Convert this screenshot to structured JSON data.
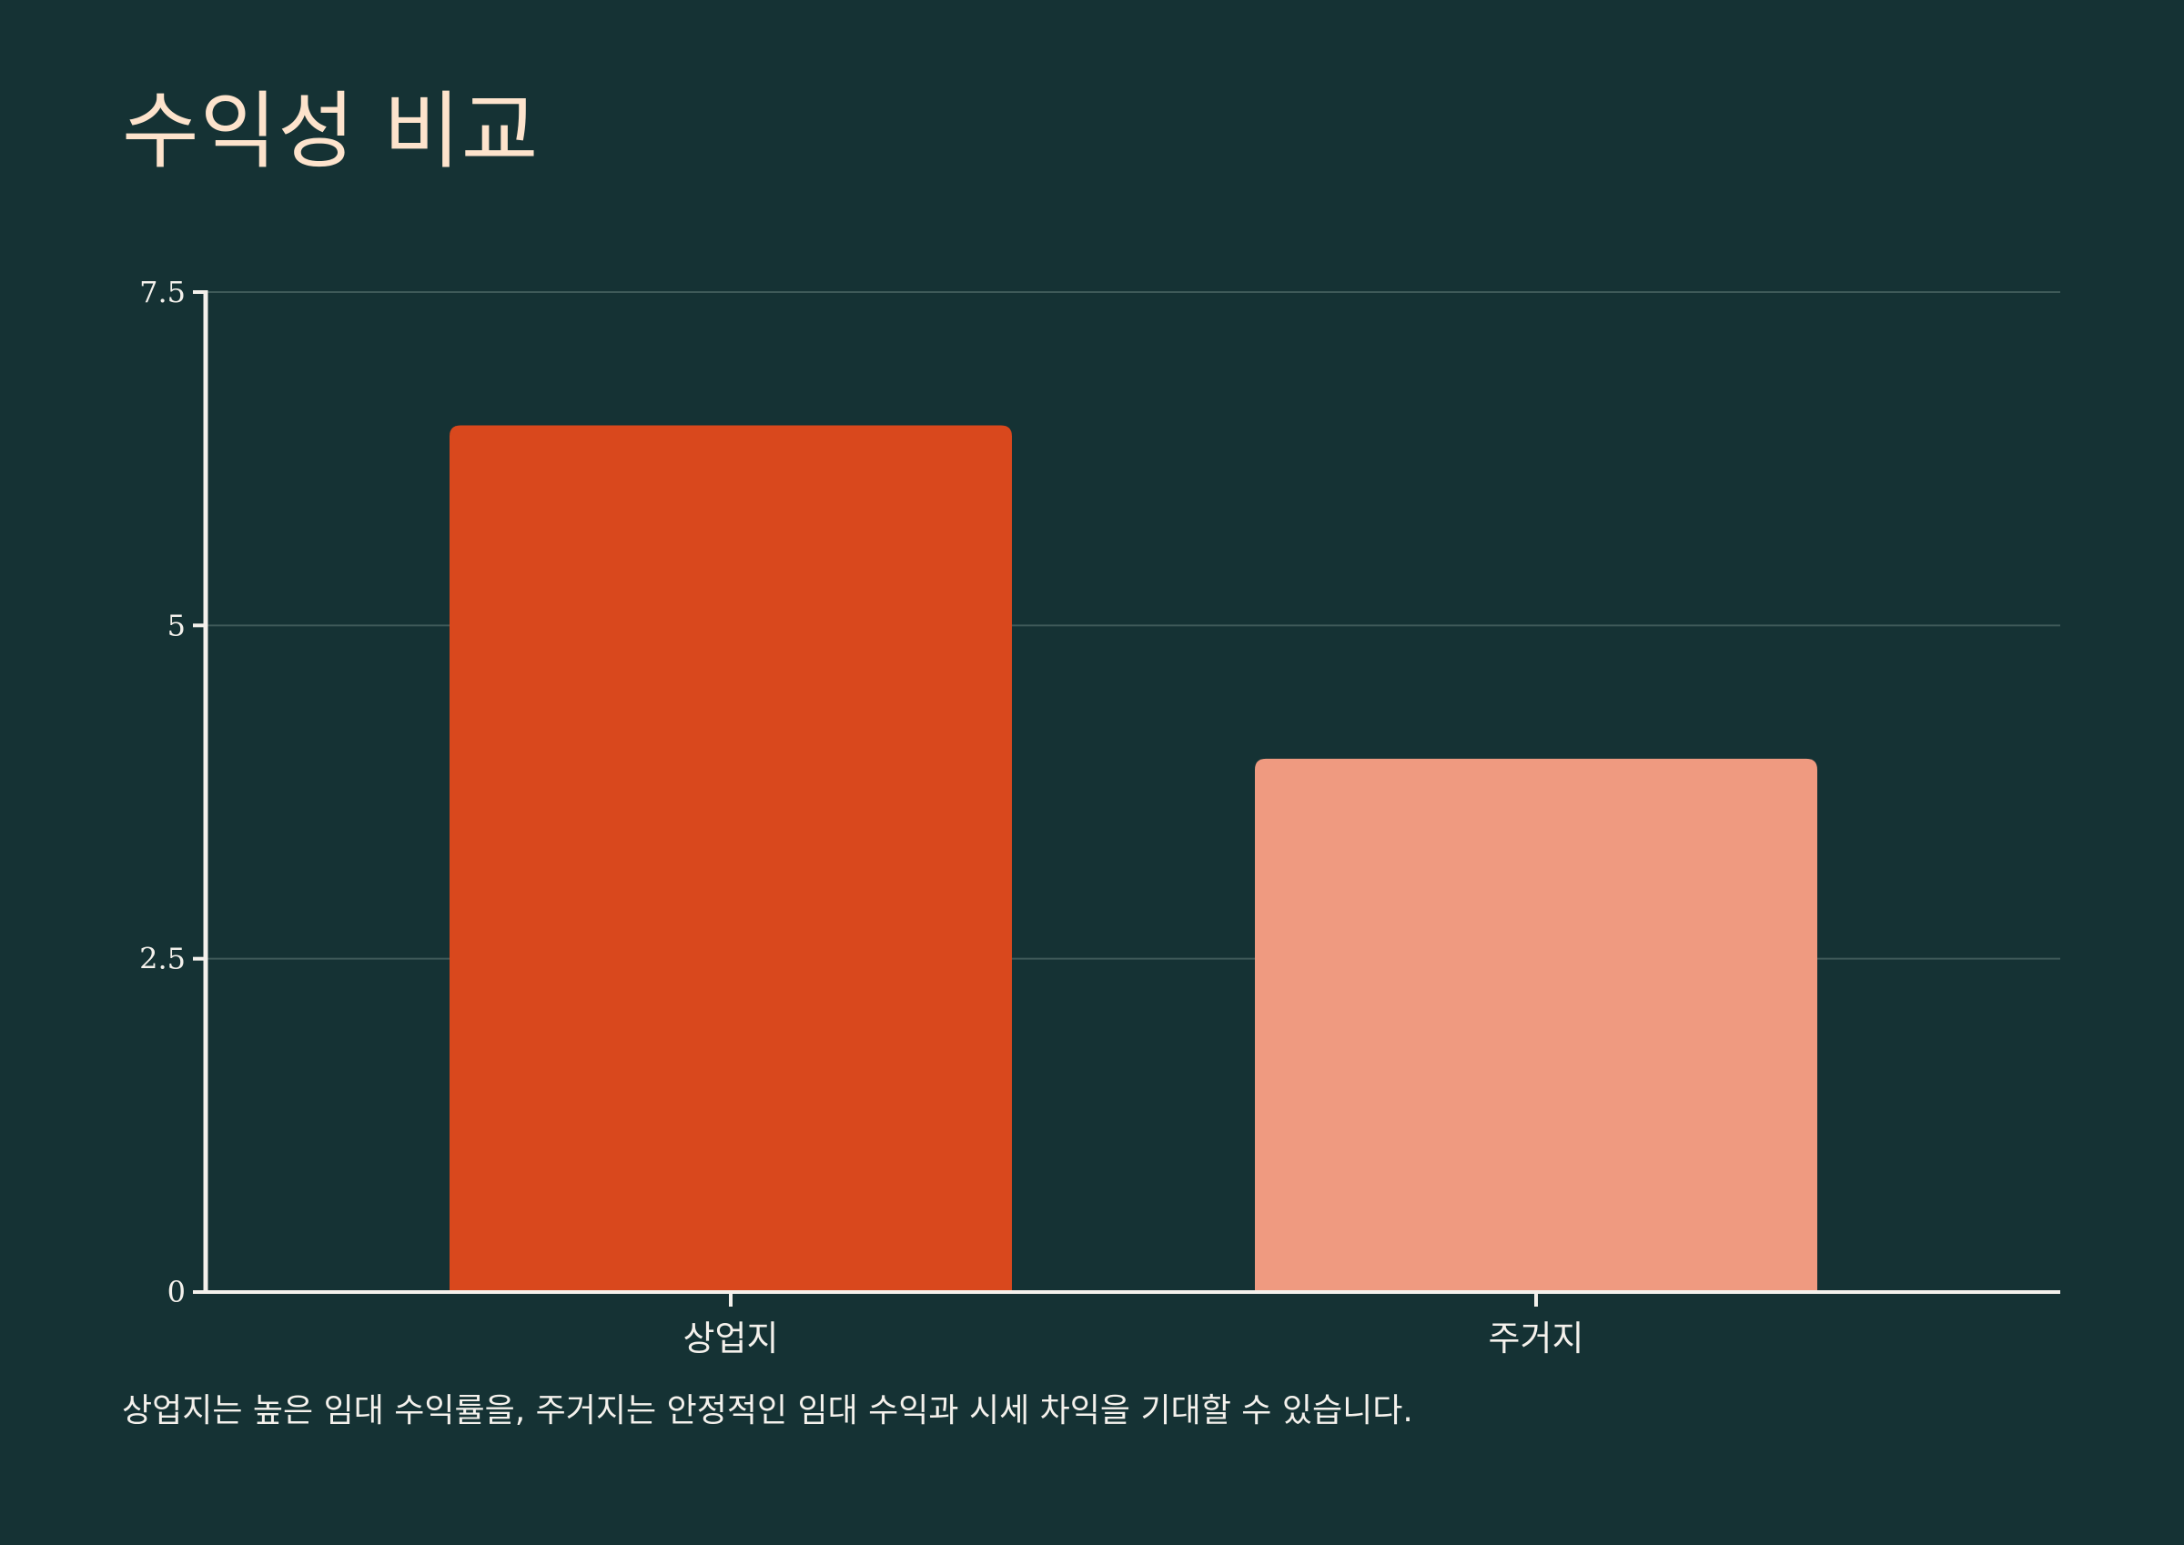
{
  "title": "수익성 비교",
  "footnote": "상업지는 높은 임대 수익률을, 주거지는 안정적인 임대 수익과 시세 차익을 기대할 수 있습니다.",
  "colors": {
    "background": "#153234",
    "title": "#fde3cc",
    "text": "#f4f1ec",
    "axis": "#f4f1ec",
    "grid": "#3f5a59"
  },
  "chart_data": {
    "type": "bar",
    "categories": [
      "상업지",
      "주거지"
    ],
    "values": [
      6.5,
      4.0
    ],
    "colors": [
      "#d9481d",
      "#ef9a80"
    ],
    "ylim": [
      0,
      7.5
    ],
    "yticks": [
      0,
      2.5,
      5,
      7.5
    ],
    "ytick_labels": [
      "0",
      "2.5",
      "5",
      "7.5"
    ],
    "grid": true,
    "xlabel": "",
    "ylabel": ""
  }
}
